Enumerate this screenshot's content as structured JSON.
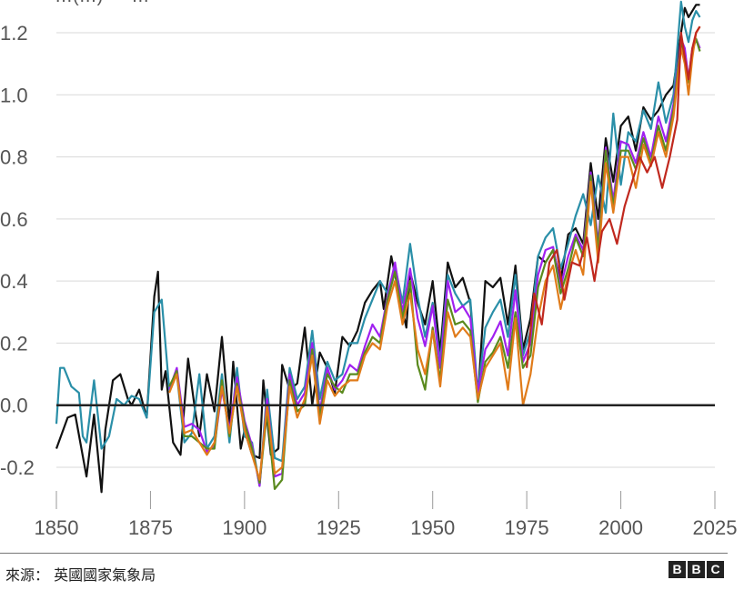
{
  "chart_data": {
    "type": "line",
    "title": "",
    "xlabel": "",
    "ylabel": "",
    "xlim": [
      1850,
      2025
    ],
    "ylim": [
      -0.3,
      1.3
    ],
    "xticks": [
      1850,
      1875,
      1900,
      1925,
      1950,
      1975,
      2000,
      2025
    ],
    "yticks": [
      -0.2,
      0.0,
      0.2,
      0.4,
      0.6,
      0.8,
      1.0,
      1.2
    ],
    "ytick_labels": [
      "-0.2",
      "0.0",
      "0.2",
      "0.4",
      "0.6",
      "0.8",
      "1.0",
      "1.2"
    ],
    "legend_partial_text": "…(…) — …",
    "colors": {
      "black_series": "#111111",
      "teal_series": "#2a8fa8",
      "purple_series": "#a020f0",
      "olive_series": "#5a8a1e",
      "orange_series": "#e07b1a",
      "red_series": "#c0281e",
      "grid": "#d9d9d9",
      "zero_line": "#222222"
    },
    "series": [
      {
        "color": "#111111",
        "x": [
          1850,
          1853,
          1855,
          1858,
          1860,
          1862,
          1863,
          1865,
          1867,
          1869,
          1870,
          1872,
          1874,
          1876,
          1877,
          1878,
          1879,
          1881,
          1883,
          1885,
          1887,
          1888,
          1890,
          1892,
          1894,
          1896,
          1897,
          1899,
          1900,
          1902,
          1904,
          1905,
          1907,
          1909,
          1910,
          1912,
          1914,
          1916,
          1918,
          1920,
          1922,
          1924,
          1926,
          1928,
          1930,
          1932,
          1934,
          1936,
          1937,
          1939,
          1941,
          1943,
          1944,
          1946,
          1948,
          1950,
          1952,
          1954,
          1956,
          1958,
          1960,
          1962,
          1964,
          1966,
          1968,
          1970,
          1972,
          1974,
          1976,
          1978,
          1980,
          1982,
          1984,
          1986,
          1988,
          1990,
          1992,
          1994,
          1996,
          1998,
          2000,
          2002,
          2004,
          2006,
          2008,
          2010,
          2012,
          2014,
          2016,
          2017,
          2018,
          2019,
          2020,
          2021
        ],
        "y": [
          -0.14,
          -0.04,
          -0.03,
          -0.23,
          -0.03,
          -0.28,
          -0.08,
          0.08,
          0.1,
          0.02,
          0.0,
          0.05,
          -0.04,
          0.35,
          0.43,
          0.05,
          0.11,
          -0.12,
          -0.16,
          0.15,
          -0.03,
          -0.1,
          0.1,
          -0.02,
          0.22,
          -0.06,
          0.14,
          -0.14,
          -0.08,
          -0.16,
          -0.17,
          0.08,
          -0.16,
          -0.14,
          0.13,
          0.05,
          0.07,
          0.25,
          0.0,
          0.17,
          0.12,
          0.04,
          0.22,
          0.19,
          0.24,
          0.33,
          0.37,
          0.4,
          0.31,
          0.48,
          0.36,
          0.25,
          0.43,
          0.33,
          0.26,
          0.4,
          0.17,
          0.46,
          0.38,
          0.41,
          0.33,
          0.02,
          0.4,
          0.38,
          0.41,
          0.26,
          0.45,
          0.18,
          0.28,
          0.48,
          0.46,
          0.5,
          0.4,
          0.55,
          0.57,
          0.52,
          0.78,
          0.6,
          0.86,
          0.72,
          0.9,
          0.93,
          0.82,
          0.96,
          0.92,
          0.95,
          1.0,
          1.03,
          1.2,
          1.28,
          1.25,
          1.27,
          1.29,
          1.29
        ]
      },
      {
        "color": "#2a8fa8",
        "x": [
          1850,
          1851,
          1852,
          1854,
          1856,
          1857,
          1858,
          1860,
          1862,
          1864,
          1866,
          1868,
          1870,
          1872,
          1874,
          1876,
          1878,
          1880,
          1882,
          1884,
          1886,
          1888,
          1890,
          1892,
          1894,
          1896,
          1898,
          1900,
          1902,
          1904,
          1906,
          1908,
          1910,
          1912,
          1914,
          1916,
          1918,
          1920,
          1922,
          1924,
          1926,
          1928,
          1930,
          1932,
          1934,
          1936,
          1938,
          1940,
          1942,
          1944,
          1946,
          1948,
          1950,
          1952,
          1954,
          1956,
          1958,
          1960,
          1962,
          1964,
          1966,
          1968,
          1970,
          1972,
          1974,
          1976,
          1978,
          1980,
          1982,
          1984,
          1986,
          1988,
          1990,
          1992,
          1994,
          1996,
          1998,
          2000,
          2002,
          2004,
          2006,
          2008,
          2010,
          2012,
          2014,
          2016,
          2017,
          2018,
          2019,
          2020,
          2021
        ],
        "y": [
          -0.06,
          0.12,
          0.12,
          0.06,
          0.04,
          -0.1,
          -0.12,
          0.08,
          -0.14,
          -0.1,
          0.02,
          0.0,
          0.03,
          0.02,
          -0.04,
          0.3,
          0.34,
          0.05,
          0.1,
          -0.12,
          -0.09,
          0.1,
          -0.14,
          -0.1,
          0.1,
          -0.12,
          0.12,
          -0.1,
          -0.12,
          -0.26,
          0.05,
          -0.17,
          -0.18,
          0.12,
          0.02,
          0.06,
          0.24,
          0.02,
          0.14,
          0.08,
          0.1,
          0.2,
          0.2,
          0.28,
          0.34,
          0.4,
          0.36,
          0.45,
          0.33,
          0.52,
          0.35,
          0.22,
          0.33,
          0.14,
          0.42,
          0.36,
          0.32,
          0.34,
          0.04,
          0.25,
          0.3,
          0.34,
          0.22,
          0.42,
          0.16,
          0.24,
          0.48,
          0.54,
          0.57,
          0.44,
          0.52,
          0.61,
          0.68,
          0.58,
          0.74,
          0.62,
          0.94,
          0.71,
          0.88,
          0.85,
          0.95,
          0.89,
          1.04,
          0.91,
          1.0,
          1.3,
          1.22,
          1.17,
          1.24,
          1.27,
          1.25
        ]
      },
      {
        "color": "#a020f0",
        "x": [
          1880,
          1882,
          1884,
          1886,
          1888,
          1890,
          1892,
          1894,
          1896,
          1898,
          1900,
          1902,
          1904,
          1906,
          1908,
          1910,
          1912,
          1914,
          1916,
          1918,
          1920,
          1922,
          1924,
          1926,
          1928,
          1930,
          1932,
          1934,
          1936,
          1938,
          1940,
          1942,
          1944,
          1946,
          1948,
          1950,
          1952,
          1954,
          1956,
          1958,
          1960,
          1962,
          1964,
          1966,
          1968,
          1970,
          1972,
          1974,
          1976,
          1978,
          1980,
          1982,
          1984,
          1986,
          1988,
          1990,
          1992,
          1994,
          1996,
          1998,
          2000,
          2002,
          2004,
          2006,
          2008,
          2010,
          2012,
          2014,
          2016,
          2017,
          2018,
          2019,
          2020,
          2021
        ],
        "y": [
          0.05,
          0.12,
          -0.07,
          -0.06,
          -0.08,
          -0.15,
          -0.13,
          0.05,
          -0.08,
          0.09,
          -0.05,
          -0.13,
          -0.26,
          0.02,
          -0.23,
          -0.22,
          0.1,
          0.0,
          0.04,
          0.2,
          -0.02,
          0.12,
          0.05,
          0.08,
          0.13,
          0.11,
          0.19,
          0.26,
          0.22,
          0.35,
          0.46,
          0.3,
          0.44,
          0.28,
          0.19,
          0.32,
          0.12,
          0.4,
          0.3,
          0.32,
          0.28,
          0.04,
          0.18,
          0.22,
          0.27,
          0.16,
          0.37,
          0.14,
          0.2,
          0.42,
          0.5,
          0.51,
          0.38,
          0.48,
          0.55,
          0.5,
          0.75,
          0.52,
          0.83,
          0.66,
          0.85,
          0.84,
          0.78,
          0.88,
          0.8,
          0.93,
          0.85,
          0.97,
          1.18,
          1.15,
          1.05,
          1.15,
          1.18,
          1.15
        ]
      },
      {
        "color": "#5a8a1e",
        "x": [
          1880,
          1882,
          1884,
          1886,
          1888,
          1890,
          1892,
          1894,
          1896,
          1898,
          1900,
          1902,
          1904,
          1906,
          1908,
          1910,
          1912,
          1914,
          1916,
          1918,
          1920,
          1922,
          1924,
          1926,
          1928,
          1930,
          1932,
          1934,
          1936,
          1938,
          1940,
          1942,
          1944,
          1946,
          1948,
          1950,
          1952,
          1954,
          1956,
          1958,
          1960,
          1962,
          1964,
          1966,
          1968,
          1970,
          1972,
          1974,
          1976,
          1978,
          1980,
          1982,
          1984,
          1986,
          1988,
          1990,
          1992,
          1994,
          1996,
          1998,
          2000,
          2002,
          2004,
          2006,
          2008,
          2010,
          2012,
          2014,
          2016,
          2017,
          2018,
          2019,
          2020,
          2021
        ],
        "y": [
          0.06,
          0.11,
          -0.1,
          -0.1,
          -0.12,
          -0.14,
          -0.14,
          0.08,
          -0.1,
          0.07,
          -0.06,
          -0.14,
          -0.25,
          -0.02,
          -0.27,
          -0.24,
          0.08,
          -0.02,
          0.0,
          0.18,
          -0.04,
          0.1,
          0.06,
          0.04,
          0.1,
          0.1,
          0.17,
          0.22,
          0.2,
          0.34,
          0.43,
          0.28,
          0.4,
          0.13,
          0.05,
          0.25,
          0.08,
          0.34,
          0.26,
          0.27,
          0.24,
          0.01,
          0.14,
          0.17,
          0.22,
          0.12,
          0.3,
          0.12,
          0.16,
          0.38,
          0.46,
          0.5,
          0.36,
          0.44,
          0.54,
          0.48,
          0.74,
          0.5,
          0.82,
          0.64,
          0.82,
          0.82,
          0.76,
          0.86,
          0.78,
          0.9,
          0.82,
          0.95,
          1.17,
          1.12,
          1.04,
          1.14,
          1.18,
          1.14
        ]
      },
      {
        "color": "#e07b1a",
        "x": [
          1880,
          1882,
          1884,
          1886,
          1888,
          1890,
          1892,
          1894,
          1896,
          1898,
          1900,
          1902,
          1904,
          1906,
          1908,
          1910,
          1912,
          1914,
          1916,
          1918,
          1920,
          1922,
          1924,
          1926,
          1928,
          1930,
          1932,
          1934,
          1936,
          1938,
          1940,
          1942,
          1944,
          1946,
          1948,
          1950,
          1952,
          1954,
          1956,
          1958,
          1960,
          1962,
          1964,
          1966,
          1968,
          1970,
          1972,
          1974,
          1976,
          1978,
          1980,
          1982,
          1984,
          1986,
          1988,
          1990,
          1992,
          1994,
          1996,
          1998,
          2000,
          2002,
          2004,
          2006,
          2008,
          2010,
          2012,
          2014,
          2016,
          2017,
          2018,
          2019,
          2020,
          2021
        ],
        "y": [
          0.04,
          0.1,
          -0.09,
          -0.08,
          -0.12,
          -0.16,
          -0.12,
          0.06,
          -0.09,
          0.06,
          -0.08,
          -0.16,
          -0.24,
          0.0,
          -0.22,
          -0.2,
          0.06,
          -0.04,
          0.02,
          0.16,
          -0.06,
          0.08,
          0.03,
          0.06,
          0.08,
          0.08,
          0.16,
          0.2,
          0.18,
          0.32,
          0.4,
          0.26,
          0.36,
          0.18,
          0.1,
          0.24,
          0.06,
          0.3,
          0.22,
          0.25,
          0.22,
          0.02,
          0.12,
          0.16,
          0.2,
          0.05,
          0.28,
          0.0,
          0.1,
          0.28,
          0.4,
          0.45,
          0.31,
          0.42,
          0.5,
          0.42,
          0.72,
          0.46,
          0.78,
          0.62,
          0.8,
          0.8,
          0.7,
          0.84,
          0.77,
          0.88,
          0.8,
          0.93,
          1.15,
          1.1,
          1.0,
          1.12,
          1.2,
          1.22
        ]
      },
      {
        "color": "#c0281e",
        "x": [
          1975,
          1977,
          1979,
          1981,
          1983,
          1985,
          1987,
          1989,
          1991,
          1993,
          1995,
          1997,
          1999,
          2001,
          2003,
          2005,
          2007,
          2009,
          2011,
          2013,
          2015,
          2016,
          2017,
          2018,
          2019,
          2020,
          2021
        ],
        "y": [
          0.12,
          0.36,
          0.26,
          0.46,
          0.5,
          0.34,
          0.46,
          0.45,
          0.54,
          0.4,
          0.56,
          0.6,
          0.52,
          0.64,
          0.72,
          0.8,
          0.75,
          0.8,
          0.7,
          0.8,
          0.92,
          1.2,
          1.12,
          1.05,
          1.15,
          1.2,
          1.22
        ]
      }
    ]
  },
  "footer": {
    "source": "來源：  英國國家氣象局",
    "bbc": [
      "B",
      "B",
      "C"
    ]
  }
}
